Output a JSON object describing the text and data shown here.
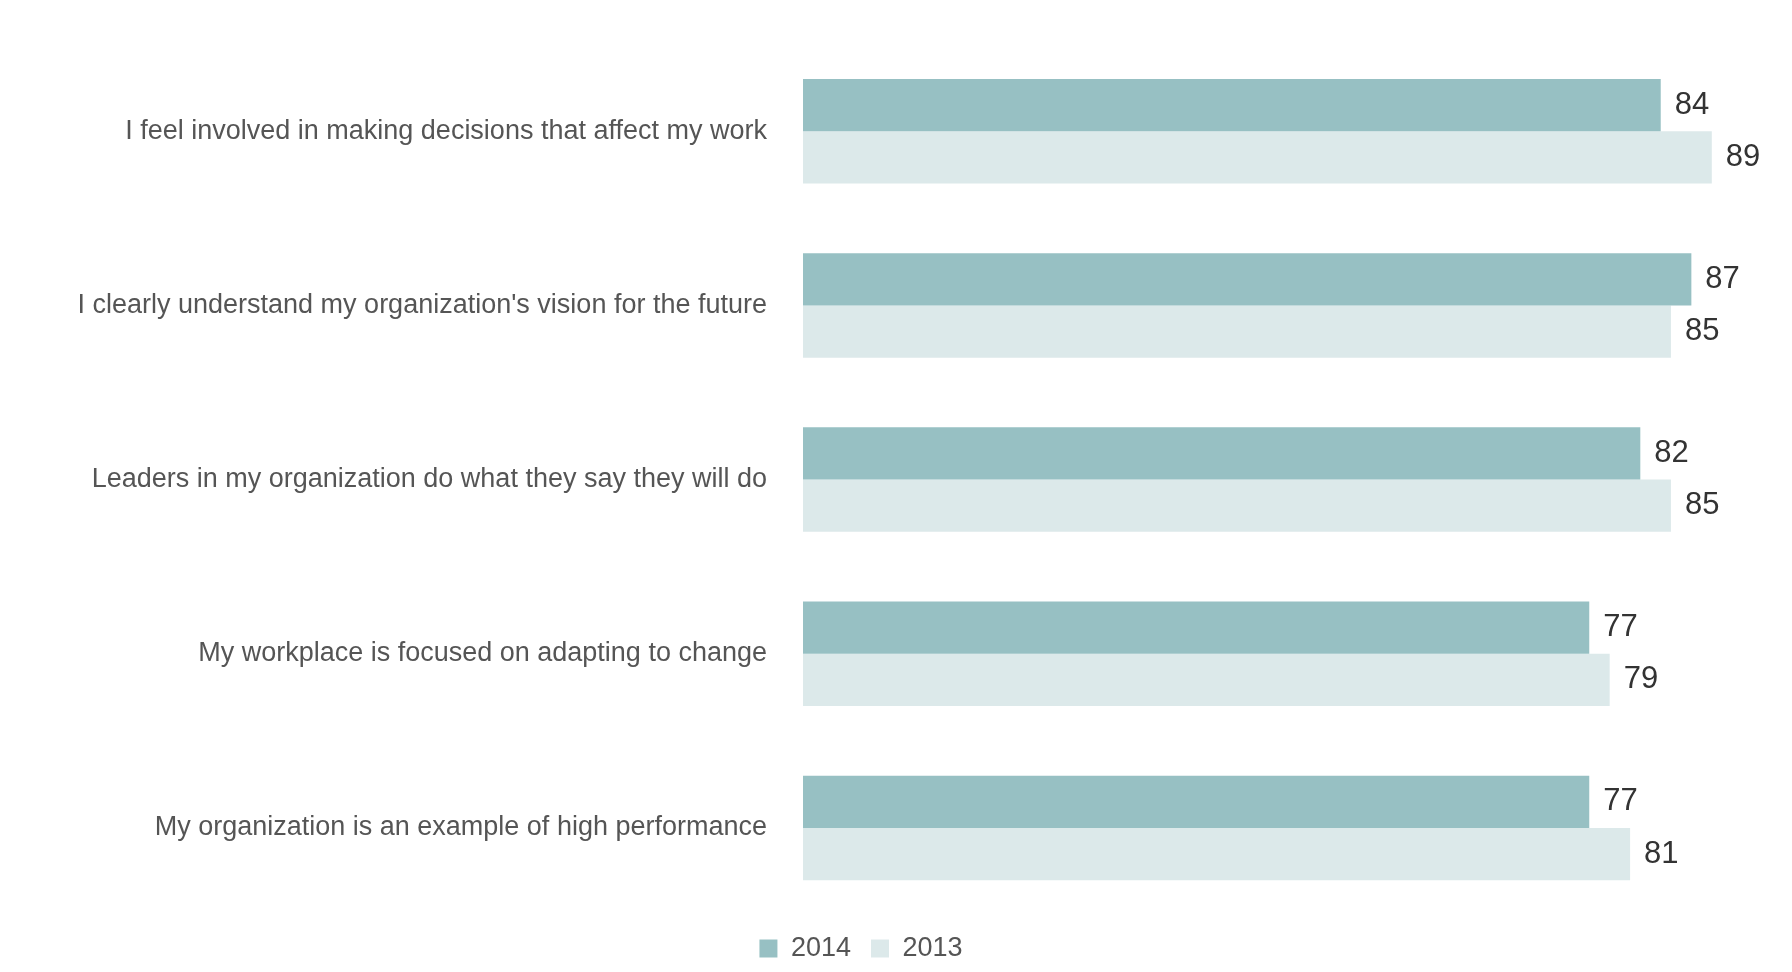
{
  "chart_data": {
    "type": "bar",
    "orientation": "horizontal",
    "categories": [
      "I feel involved in making decisions that affect my work",
      "I clearly understand my organization's vision for the future",
      "Leaders in my organization do what they say they will do",
      "My workplace is focused on adapting to change",
      "My organization is an example of high performance"
    ],
    "series": [
      {
        "name": "2014",
        "color": "#97c0c3",
        "values": [
          84,
          87,
          82,
          77,
          77
        ]
      },
      {
        "name": "2013",
        "color": "#dce9ea",
        "values": [
          89,
          85,
          85,
          79,
          81
        ]
      }
    ],
    "tick_labels": "y",
    "legend": "bottom",
    "data_labels": true
  }
}
